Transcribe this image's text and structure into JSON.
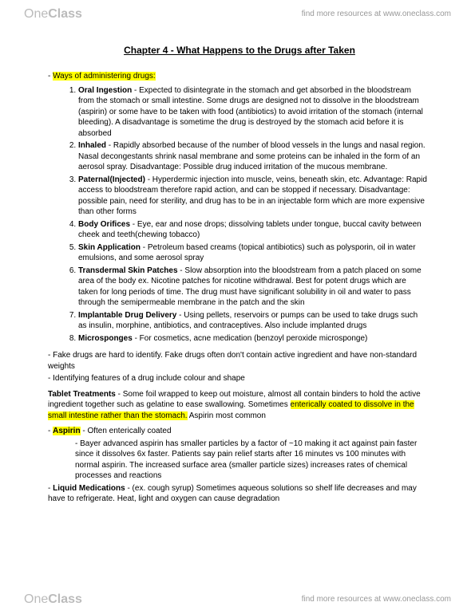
{
  "header": {
    "logo_light": "One",
    "logo_heavy": "Class",
    "resources": "find more resources at www.oneclass.com"
  },
  "footer": {
    "logo_light": "One",
    "logo_heavy": "Class",
    "resources": "find more resources at www.oneclass.com"
  },
  "title": "Chapter 4 - What Happens to the Drugs after Taken",
  "lead_dash": "- ",
  "lead_hl": "Ways of administering drugs:",
  "ways": [
    {
      "term": "Oral Ingestion",
      "text": " - Expected to disintegrate in the stomach and get absorbed in the bloodstream from the stomach or small intestine. Some drugs are designed not to dissolve in the bloodstream (aspirin) or some have to be taken with food (antibiotics) to avoid irritation of the stomach (internal bleeding). A disadvantage is sometime the drug is destroyed by the stomach acid before it is absorbed"
    },
    {
      "term": "Inhaled",
      "text": " - Rapidly absorbed because of the number of blood vessels in the lungs and nasal region. Nasal decongestants shrink nasal membrane and some proteins can be inhaled in the form of an aerosol spray. Disadvantage: Possible drug induced irritation of the mucous membrane."
    },
    {
      "term": "Paternal(Injected)",
      "text": " - Hyperdermic injection into muscle, veins, beneath skin, etc. Advantage: Rapid access to bloodstream therefore rapid action, and can be stopped if necessary. Disadvantage: possible pain, need for sterility, and drug has to be in an injectable form which are more expensive than other forms"
    },
    {
      "term": "Body Orifices",
      "text": " - Eye, ear and nose drops; dissolving tablets under tongue, buccal cavity between cheek and teeth(chewing tobacco)"
    },
    {
      "term": "Skin Application",
      "text": " - Petroleum based creams (topical antibiotics) such as polysporin, oil in water emulsions, and some aerosol spray"
    },
    {
      "term": "Transdermal Skin Patches",
      "text": " - Slow absorption into the bloodstream from a patch placed on some area of the body ex. Nicotine patches for nicotine withdrawal. Best for potent drugs which are taken for long periods of time. The drug must have significant solubility in oil and water to pass through the semipermeable membrane in the patch and the skin"
    },
    {
      "term": "Implantable Drug Delivery",
      "text": " - Using pellets, reservoirs or pumps can be used to take drugs such as insulin, morphine, antibiotics, and contraceptives. Also include implanted drugs"
    },
    {
      "term": "Microsponges",
      "text": " - For cosmetics, acne medication (benzoyl peroxide microsponge)"
    }
  ],
  "p1": "- Fake drugs are hard to identify. Fake drugs often don't contain active ingredient and have non-standard weights",
  "p2": "- Identifying features of a drug include colour and shape",
  "tablet": {
    "term": "Tablet Treatments",
    "t1": " - Some foil wrapped to keep out moisture, almost all contain binders to hold the active ingredient together such as gelatine to ease swallowing. Sometimes ",
    "hl": "enterically coated to dissolve in the small intestine rather than the stomach.",
    "t2": " Aspirin most common"
  },
  "aspirin": {
    "dash": "- ",
    "term": "Aspirin",
    "rest": " - Often enterically coated",
    "sub": "- Bayer advanced aspirin has smaller particles by a factor of ~10 making it act against pain faster since it dissolves 6x faster. Patients say pain relief starts after 16 minutes vs 100 minutes with normal aspirin. The increased surface area (smaller particle sizes) increases rates of chemical processes and reactions"
  },
  "liquid": {
    "dash": "- ",
    "term": "Liquid Medications",
    "rest": " - (ex. cough syrup) Sometimes aqueous solutions so shelf life decreases and may have to refrigerate. Heat, light and oxygen can cause degradation"
  }
}
